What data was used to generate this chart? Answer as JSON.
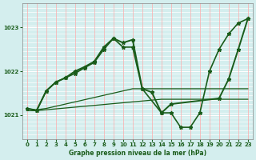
{
  "background_color": "#d4eeee",
  "grid_color_h": "#ffffff",
  "grid_color_v": "#ffaaaa",
  "line_color": "#1a5c1a",
  "title": "Graphe pression niveau de la mer (hPa)",
  "ylim": [
    1020.45,
    1023.55
  ],
  "xlim": [
    -0.5,
    23.5
  ],
  "yticks": [
    1021,
    1022,
    1023
  ],
  "xticks": [
    0,
    1,
    2,
    3,
    4,
    5,
    6,
    7,
    8,
    9,
    10,
    11,
    12,
    13,
    14,
    15,
    16,
    17,
    18,
    19,
    20,
    21,
    22,
    23
  ],
  "line1_x": [
    0,
    1,
    2,
    3,
    4,
    5,
    6,
    7,
    8,
    9,
    10,
    11,
    12,
    13,
    14,
    15,
    16,
    17,
    18,
    19,
    20,
    21,
    22,
    23
  ],
  "line1_y": [
    1021.1,
    1021.1,
    1021.12,
    1021.14,
    1021.16,
    1021.18,
    1021.2,
    1021.22,
    1021.24,
    1021.26,
    1021.28,
    1021.3,
    1021.32,
    1021.34,
    1021.36,
    1021.36,
    1021.36,
    1021.36,
    1021.36,
    1021.36,
    1021.36,
    1021.36,
    1021.36,
    1021.36
  ],
  "line2_x": [
    0,
    1,
    2,
    3,
    4,
    5,
    6,
    7,
    8,
    9,
    10,
    11,
    12,
    13,
    14,
    15,
    16,
    17,
    18,
    19,
    20,
    21,
    22,
    23
  ],
  "line2_y": [
    1021.15,
    1021.12,
    1021.15,
    1021.2,
    1021.25,
    1021.3,
    1021.35,
    1021.4,
    1021.45,
    1021.5,
    1021.55,
    1021.6,
    1021.6,
    1021.6,
    1021.6,
    1021.6,
    1021.6,
    1021.6,
    1021.6,
    1021.6,
    1021.6,
    1021.6,
    1021.6,
    1021.6
  ],
  "line3_x": [
    1,
    2,
    3,
    4,
    5,
    6,
    7,
    8,
    9,
    10,
    11,
    12,
    14,
    15,
    16,
    17,
    18,
    19,
    20,
    21,
    22,
    23
  ],
  "line3_y": [
    1021.1,
    1021.55,
    1021.75,
    1021.85,
    1021.95,
    1022.08,
    1022.2,
    1022.5,
    1022.75,
    1022.55,
    1022.55,
    1021.6,
    1021.05,
    1021.05,
    1020.72,
    1020.72,
    1021.05,
    1022.0,
    1022.5,
    1022.85,
    1023.1,
    1023.2
  ],
  "line4_x": [
    0,
    1,
    2,
    3,
    4,
    5,
    6,
    7,
    8,
    9,
    10,
    11,
    12,
    13,
    14,
    15,
    20,
    21,
    22,
    23
  ],
  "line4_y": [
    1021.15,
    1021.1,
    1021.55,
    1021.75,
    1021.85,
    1022.0,
    1022.1,
    1022.22,
    1022.55,
    1022.75,
    1022.65,
    1022.72,
    1021.6,
    1021.52,
    1021.05,
    1021.25,
    1021.38,
    1021.82,
    1022.5,
    1023.2
  ]
}
